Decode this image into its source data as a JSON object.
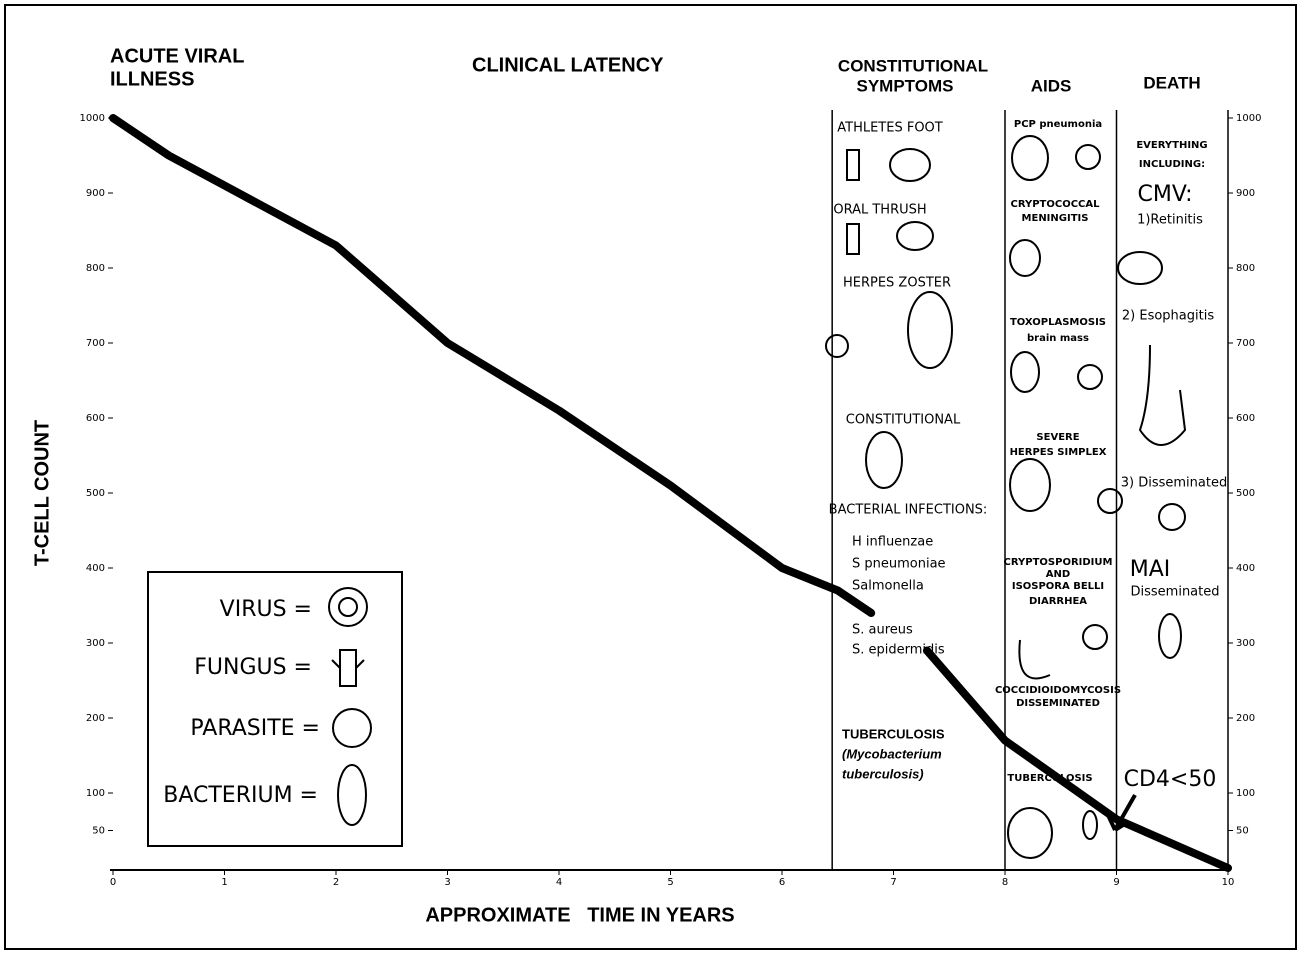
{
  "chart_data": {
    "type": "line",
    "y_label": "T-CELL COUNT",
    "x_label": "APPROXIMATE   TIME IN YEARS",
    "x": [
      0,
      0.5,
      1,
      2,
      3,
      4,
      5,
      6,
      6.5,
      6.8,
      7,
      7.3,
      8,
      9,
      10
    ],
    "values": [
      1000,
      950,
      910,
      830,
      700,
      610,
      510,
      400,
      370,
      340,
      null,
      290,
      170,
      65,
      0
    ],
    "color": "#000000",
    "xlim": [
      0,
      10
    ],
    "ylim": [
      0,
      1000
    ],
    "xticks": [
      0,
      1,
      2,
      3,
      4,
      5,
      6,
      7,
      8,
      9,
      10
    ],
    "yticks": [
      50,
      100,
      200,
      300,
      400,
      500,
      600,
      700,
      800,
      900,
      1000
    ],
    "stage_boundaries": [
      6.45,
      8,
      9
    ],
    "stages": [
      [
        "ACUTE VIRAL",
        "ILLNESS"
      ],
      [
        "CLINICAL LATENCY"
      ],
      [
        "CONSTITUTIONAL",
        "SYMPTOMS"
      ],
      [
        "AIDS"
      ],
      [
        "DEATH"
      ]
    ],
    "constitutional_notes": [
      "ATHLETES FOOT",
      "ORAL THRUSH",
      "HERPES ZOSTER",
      "CONSTITUTIONAL",
      "BACTERIAL INFECTIONS:",
      "H influenzae",
      "S pneumoniae",
      "Salmonella",
      "S. aureus",
      "S. epidermidis",
      "TUBERCULOSIS",
      "(Mycobacterium",
      "tuberculosis)"
    ],
    "aids_notes": [
      "PCP pneumonia",
      "CRYPTOCOCCAL",
      "MENINGITIS",
      "TOXOPLASMOSIS",
      "brain mass",
      "SEVERE",
      "HERPES SIMPLEX",
      "CRYPTOSPORIDIUM",
      "AND",
      "ISOSPORA BELLI",
      "DIARRHEA",
      "COCCIDIOIDOMYCOSIS",
      "DISSEMINATED",
      "TUBERCULOSIS"
    ],
    "death_notes": [
      "EVERYTHING",
      "INCLUDING:",
      "CMV:",
      "1)Retinitis",
      "2) Esophagitis",
      "3) Disseminated",
      "MAI",
      "Disseminated",
      "CD4<50"
    ],
    "legend": [
      "VIRUS =",
      "FUNGUS =",
      "PARASITE =",
      "BACTERIUM ="
    ]
  }
}
